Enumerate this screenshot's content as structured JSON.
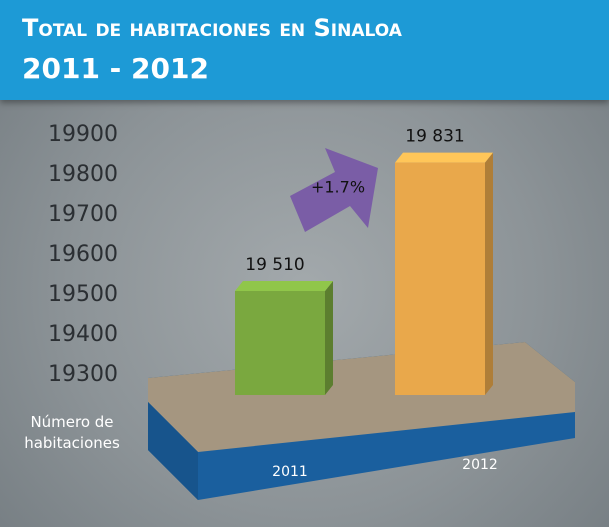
{
  "chart_data": {
    "type": "bar",
    "title": "Total de habitaciones en Sinaloa",
    "subtitle": "2011 - 2012",
    "y_label": "Número de habitaciones",
    "annotation": "+1.7%",
    "categories": [
      "2011",
      "2012"
    ],
    "values": [
      19510,
      19831
    ],
    "value_labels": [
      "19 510",
      "19 831"
    ],
    "colors": [
      "#7aa83f",
      "#e9a84b"
    ],
    "ylim": [
      19250,
      19900
    ],
    "yticks": [
      19300,
      19400,
      19500,
      19600,
      19700,
      19800,
      19900
    ],
    "grid": false
  }
}
